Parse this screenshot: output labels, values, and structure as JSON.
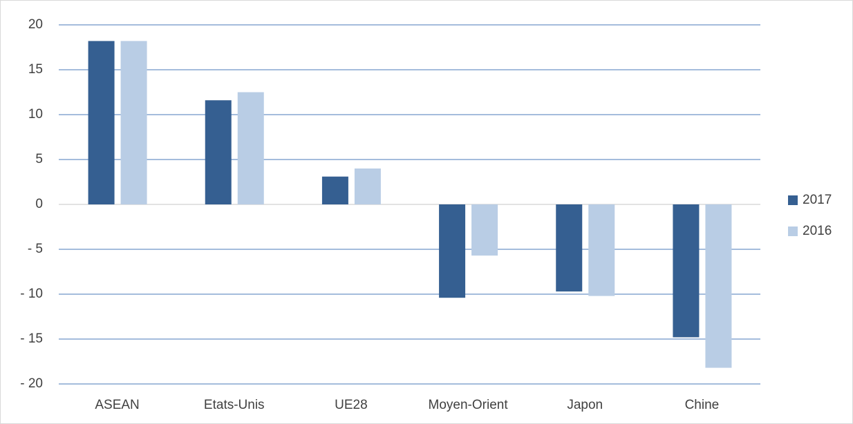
{
  "chart_data": {
    "type": "bar",
    "categories": [
      "ASEAN",
      "Etats-Unis",
      "UE28",
      "Moyen-Orient",
      "Japon",
      "Chine"
    ],
    "series": [
      {
        "name": "2017",
        "color": "#355f91",
        "values": [
          18.2,
          11.6,
          3.1,
          -10.4,
          -9.7,
          -14.8
        ]
      },
      {
        "name": "2016",
        "color": "#b9cde5",
        "values": [
          18.2,
          12.5,
          4.0,
          -5.7,
          -10.2,
          -18.2
        ]
      }
    ],
    "ylim": [
      -20,
      20
    ],
    "yticks": [
      {
        "value": -20,
        "label": "- 20"
      },
      {
        "value": -15,
        "label": "- 15"
      },
      {
        "value": -10,
        "label": "- 10"
      },
      {
        "value": -5,
        "label": "- 5"
      },
      0,
      5,
      10,
      15,
      20
    ],
    "grid": true,
    "legend": "right"
  }
}
